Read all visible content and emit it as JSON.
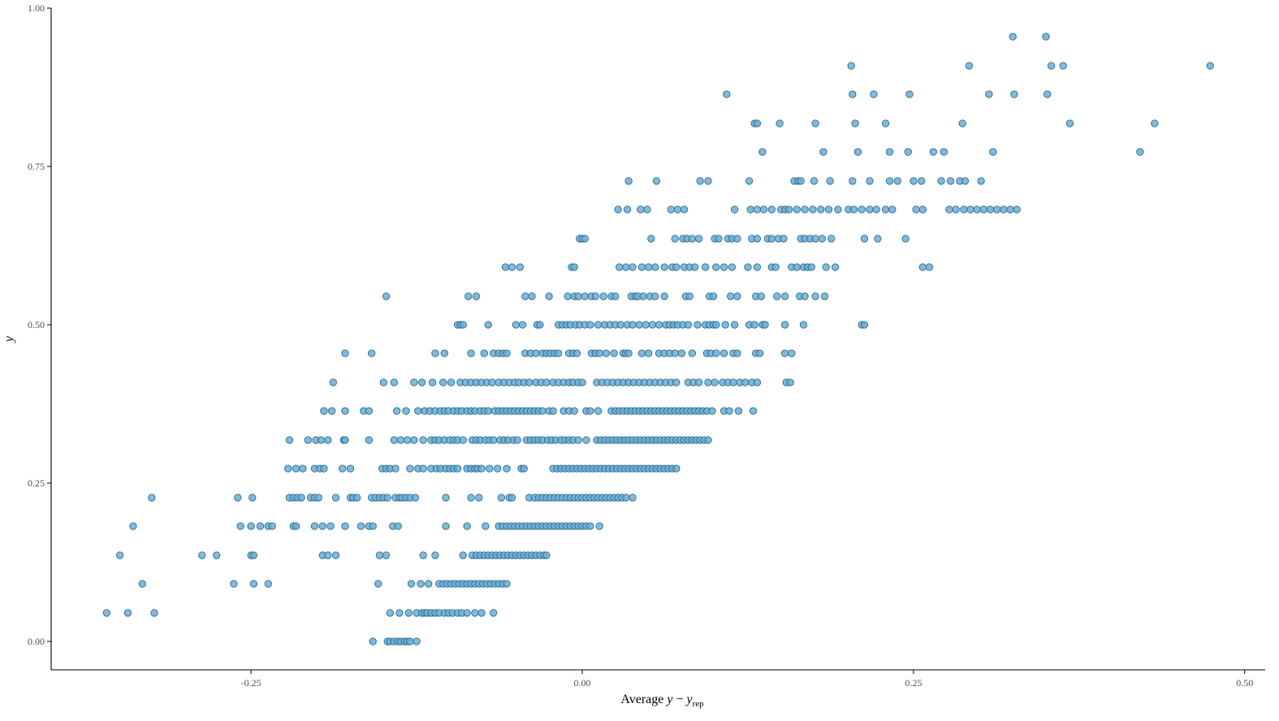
{
  "colors": {
    "point_fill": "#6baed6",
    "point_stroke": "#2c6a8e",
    "axis": "#000000",
    "tick_text": "#4d4d4d"
  },
  "chart_data": {
    "type": "scatter",
    "title": "",
    "xlabel": "Average y − y_rep",
    "xlabel_parts": {
      "prefix": "Average ",
      "var": "y",
      "op": " − ",
      "var2": "y",
      "subscript": "rep"
    },
    "ylabel": "y",
    "xlim": [
      -0.4,
      0.5
    ],
    "ylim": [
      -0.035,
      1.0
    ],
    "x_ticks": [
      -0.25,
      0,
      0.25,
      0.5
    ],
    "x_tick_labels": [
      "-0.25",
      "0.00",
      "0.25",
      "0.50"
    ],
    "y_ticks": [
      0,
      0.25,
      0.5,
      0.75,
      1.0
    ],
    "y_tick_labels": [
      "0.00",
      "0.25",
      "0.50",
      "0.75",
      "1.00"
    ],
    "grid": false,
    "legend": "none",
    "series": [
      {
        "rows": [
          {
            "y": 0.0,
            "x": [
              -0.158,
              -0.147,
              -0.145,
              -0.142,
              -0.139,
              -0.137,
              -0.134,
              -0.132,
              -0.13,
              -0.125
            ]
          },
          {
            "y": 0.045,
            "x": [
              -0.359,
              -0.343,
              -0.323,
              -0.145,
              -0.138,
              -0.131,
              -0.125,
              -0.121,
              -0.119,
              -0.117,
              -0.114,
              -0.111,
              -0.108,
              -0.104,
              -0.101,
              -0.098,
              -0.094,
              -0.091,
              -0.087,
              -0.081,
              -0.076,
              -0.067
            ]
          },
          {
            "y": 0.091,
            "x": [
              -0.332,
              -0.263,
              -0.248,
              -0.237,
              -0.154,
              -0.129,
              -0.122,
              -0.116,
              -0.108,
              -0.105,
              -0.102,
              -0.099,
              -0.096,
              -0.093,
              -0.09,
              -0.087,
              -0.084,
              -0.081,
              -0.078,
              -0.075,
              -0.072,
              -0.069,
              -0.066,
              -0.063,
              -0.06,
              -0.057
            ]
          },
          {
            "y": 0.136,
            "x": [
              -0.349,
              -0.287,
              -0.276,
              -0.25,
              -0.248,
              -0.196,
              -0.192,
              -0.186,
              -0.153,
              -0.148,
              -0.12,
              -0.111,
              -0.09,
              -0.083,
              -0.08,
              -0.077,
              -0.074,
              -0.071,
              -0.068,
              -0.065,
              -0.062,
              -0.059,
              -0.056,
              -0.053,
              -0.05,
              -0.047,
              -0.044,
              -0.041,
              -0.038,
              -0.035,
              -0.032,
              -0.029,
              -0.027
            ]
          },
          {
            "y": 0.182,
            "x": [
              -0.339,
              -0.258,
              -0.25,
              -0.243,
              -0.237,
              -0.234,
              -0.218,
              -0.216,
              -0.202,
              -0.196,
              -0.19,
              -0.179,
              -0.167,
              -0.161,
              -0.158,
              -0.143,
              -0.139,
              -0.103,
              -0.087,
              -0.073,
              -0.063,
              -0.06,
              -0.057,
              -0.054,
              -0.051,
              -0.048,
              -0.045,
              -0.042,
              -0.039,
              -0.036,
              -0.033,
              -0.03,
              -0.027,
              -0.024,
              -0.021,
              -0.018,
              -0.015,
              -0.012,
              -0.009,
              -0.006,
              -0.003,
              0.0,
              0.003,
              0.006,
              0.013
            ]
          },
          {
            "y": 0.227,
            "x": [
              -0.325,
              -0.26,
              -0.249,
              -0.221,
              -0.218,
              -0.215,
              -0.212,
              -0.205,
              -0.202,
              -0.199,
              -0.186,
              -0.175,
              -0.173,
              -0.17,
              -0.159,
              -0.156,
              -0.153,
              -0.15,
              -0.147,
              -0.141,
              -0.138,
              -0.136,
              -0.133,
              -0.13,
              -0.126,
              -0.103,
              -0.084,
              -0.078,
              -0.061,
              -0.055,
              -0.053,
              -0.04,
              -0.036,
              -0.033,
              -0.03,
              -0.027,
              -0.024,
              -0.021,
              -0.018,
              -0.015,
              -0.012,
              -0.009,
              -0.006,
              -0.003,
              0.0,
              0.003,
              0.006,
              0.009,
              0.012,
              0.015,
              0.018,
              0.021,
              0.024,
              0.027,
              0.03,
              0.033,
              0.038
            ]
          },
          {
            "y": 0.273,
            "x": [
              -0.222,
              -0.216,
              -0.211,
              -0.202,
              -0.198,
              -0.195,
              -0.181,
              -0.175,
              -0.151,
              -0.148,
              -0.145,
              -0.141,
              -0.13,
              -0.124,
              -0.12,
              -0.114,
              -0.11,
              -0.107,
              -0.103,
              -0.1,
              -0.097,
              -0.094,
              -0.087,
              -0.084,
              -0.081,
              -0.079,
              -0.076,
              -0.07,
              -0.064,
              -0.057,
              -0.046,
              -0.044,
              -0.022,
              -0.019,
              -0.016,
              -0.013,
              -0.01,
              -0.007,
              -0.004,
              -0.001,
              0.002,
              0.005,
              0.008,
              0.011,
              0.014,
              0.017,
              0.02,
              0.023,
              0.026,
              0.029,
              0.032,
              0.035,
              0.038,
              0.041,
              0.044,
              0.047,
              0.05,
              0.053,
              0.056,
              0.059,
              0.062,
              0.065,
              0.068,
              0.071
            ]
          },
          {
            "y": 0.318,
            "x": [
              -0.221,
              -0.207,
              -0.201,
              -0.197,
              -0.192,
              -0.18,
              -0.179,
              -0.161,
              -0.142,
              -0.137,
              -0.132,
              -0.127,
              -0.12,
              -0.114,
              -0.111,
              -0.108,
              -0.104,
              -0.1,
              -0.097,
              -0.094,
              -0.09,
              -0.083,
              -0.08,
              -0.077,
              -0.073,
              -0.07,
              -0.067,
              -0.062,
              -0.059,
              -0.056,
              -0.052,
              -0.049,
              -0.042,
              -0.039,
              -0.036,
              -0.033,
              -0.03,
              -0.026,
              -0.023,
              -0.02,
              -0.016,
              -0.013,
              -0.01,
              -0.007,
              -0.003,
              0.003,
              0.011,
              0.014,
              0.017,
              0.02,
              0.023,
              0.026,
              0.029,
              0.032,
              0.035,
              0.038,
              0.041,
              0.044,
              0.047,
              0.05,
              0.053,
              0.056,
              0.059,
              0.062,
              0.065,
              0.068,
              0.071,
              0.074,
              0.077,
              0.08,
              0.083,
              0.086,
              0.089,
              0.092,
              0.095
            ]
          },
          {
            "y": 0.364,
            "x": [
              -0.195,
              -0.189,
              -0.179,
              -0.165,
              -0.161,
              -0.14,
              -0.133,
              -0.124,
              -0.119,
              -0.115,
              -0.111,
              -0.107,
              -0.104,
              -0.101,
              -0.097,
              -0.094,
              -0.091,
              -0.087,
              -0.084,
              -0.081,
              -0.077,
              -0.074,
              -0.071,
              -0.066,
              -0.063,
              -0.06,
              -0.057,
              -0.054,
              -0.051,
              -0.048,
              -0.045,
              -0.042,
              -0.039,
              -0.036,
              -0.033,
              -0.03,
              -0.025,
              -0.022,
              -0.014,
              -0.01,
              -0.006,
              0.003,
              0.006,
              0.012,
              0.022,
              0.025,
              0.028,
              0.031,
              0.034,
              0.037,
              0.04,
              0.043,
              0.046,
              0.049,
              0.052,
              0.055,
              0.058,
              0.061,
              0.064,
              0.067,
              0.07,
              0.073,
              0.076,
              0.079,
              0.082,
              0.085,
              0.088,
              0.091,
              0.094,
              0.098,
              0.107,
              0.111,
              0.118,
              0.129
            ]
          },
          {
            "y": 0.409,
            "x": [
              -0.188,
              -0.15,
              -0.142,
              -0.127,
              -0.121,
              -0.113,
              -0.105,
              -0.099,
              -0.092,
              -0.088,
              -0.084,
              -0.08,
              -0.076,
              -0.072,
              -0.068,
              -0.063,
              -0.059,
              -0.055,
              -0.051,
              -0.048,
              -0.044,
              -0.04,
              -0.035,
              -0.031,
              -0.027,
              -0.022,
              -0.018,
              -0.014,
              -0.01,
              -0.007,
              -0.003,
              0.0,
              0.011,
              0.015,
              0.019,
              0.023,
              0.027,
              0.031,
              0.035,
              0.039,
              0.043,
              0.047,
              0.051,
              0.055,
              0.059,
              0.063,
              0.067,
              0.071,
              0.08,
              0.084,
              0.088,
              0.095,
              0.1,
              0.106,
              0.11,
              0.114,
              0.119,
              0.123,
              0.128,
              0.132,
              0.154,
              0.157
            ]
          },
          {
            "y": 0.455,
            "x": [
              -0.179,
              -0.159,
              -0.111,
              -0.104,
              -0.084,
              -0.074,
              -0.067,
              -0.063,
              -0.06,
              -0.057,
              -0.043,
              -0.039,
              -0.035,
              -0.03,
              -0.027,
              -0.024,
              -0.021,
              -0.018,
              -0.01,
              -0.007,
              -0.004,
              0.007,
              0.01,
              0.013,
              0.018,
              0.024,
              0.031,
              0.033,
              0.035,
              0.045,
              0.05,
              0.058,
              0.062,
              0.066,
              0.07,
              0.075,
              0.083,
              0.094,
              0.097,
              0.101,
              0.107,
              0.114,
              0.117,
              0.131,
              0.134,
              0.153,
              0.158
            ]
          },
          {
            "y": 0.5,
            "x": [
              -0.094,
              -0.092,
              -0.09,
              -0.071,
              -0.05,
              -0.045,
              -0.034,
              -0.032,
              -0.018,
              -0.015,
              -0.012,
              -0.009,
              -0.005,
              -0.002,
              0.002,
              0.006,
              0.012,
              0.017,
              0.021,
              0.025,
              0.029,
              0.034,
              0.038,
              0.043,
              0.048,
              0.053,
              0.058,
              0.063,
              0.066,
              0.069,
              0.072,
              0.076,
              0.08,
              0.087,
              0.093,
              0.096,
              0.099,
              0.101,
              0.108,
              0.115,
              0.126,
              0.13,
              0.136,
              0.138,
              0.153,
              0.167,
              0.211,
              0.213
            ]
          },
          {
            "y": 0.545,
            "x": [
              -0.148,
              -0.086,
              -0.08,
              -0.043,
              -0.038,
              -0.025,
              -0.011,
              -0.006,
              -0.003,
              0.002,
              0.007,
              0.01,
              0.016,
              0.022,
              0.025,
              0.037,
              0.04,
              0.042,
              0.046,
              0.051,
              0.055,
              0.062,
              0.078,
              0.081,
              0.096,
              0.099,
              0.112,
              0.117,
              0.131,
              0.135,
              0.147,
              0.153,
              0.164,
              0.168,
              0.176,
              0.183
            ]
          },
          {
            "y": 0.591,
            "x": [
              -0.058,
              -0.053,
              -0.047,
              -0.008,
              -0.006,
              0.028,
              0.033,
              0.038,
              0.045,
              0.05,
              0.055,
              0.062,
              0.068,
              0.071,
              0.077,
              0.081,
              0.085,
              0.093,
              0.101,
              0.107,
              0.113,
              0.125,
              0.132,
              0.143,
              0.146,
              0.158,
              0.162,
              0.167,
              0.17,
              0.173,
              0.184,
              0.191,
              0.257,
              0.262
            ]
          },
          {
            "y": 0.636,
            "x": [
              -0.002,
              0.0,
              0.002,
              0.052,
              0.07,
              0.076,
              0.079,
              0.083,
              0.088,
              0.1,
              0.103,
              0.11,
              0.113,
              0.117,
              0.128,
              0.132,
              0.14,
              0.143,
              0.148,
              0.152,
              0.165,
              0.168,
              0.172,
              0.176,
              0.181,
              0.188,
              0.213,
              0.223,
              0.244
            ]
          },
          {
            "y": 0.682,
            "x": [
              0.027,
              0.034,
              0.044,
              0.049,
              0.067,
              0.072,
              0.077,
              0.115,
              0.127,
              0.132,
              0.137,
              0.143,
              0.15,
              0.153,
              0.156,
              0.162,
              0.168,
              0.174,
              0.18,
              0.186,
              0.193,
              0.201,
              0.205,
              0.211,
              0.217,
              0.222,
              0.229,
              0.234,
              0.252,
              0.257,
              0.277,
              0.282,
              0.288,
              0.293,
              0.298,
              0.303,
              0.308,
              0.313,
              0.318,
              0.323,
              0.328
            ]
          },
          {
            "y": 0.727,
            "x": [
              0.035,
              0.056,
              0.089,
              0.095,
              0.126,
              0.16,
              0.163,
              0.165,
              0.175,
              0.187,
              0.204,
              0.217,
              0.232,
              0.238,
              0.25,
              0.256,
              0.271,
              0.278,
              0.285,
              0.289,
              0.301
            ]
          },
          {
            "y": 0.773,
            "x": [
              0.136,
              0.182,
              0.208,
              0.232,
              0.246,
              0.265,
              0.273,
              0.31,
              0.421
            ]
          },
          {
            "y": 0.818,
            "x": [
              0.13,
              0.132,
              0.149,
              0.176,
              0.206,
              0.229,
              0.287,
              0.368,
              0.432
            ]
          },
          {
            "y": 0.864,
            "x": [
              0.109,
              0.204,
              0.22,
              0.247,
              0.307,
              0.326,
              0.351
            ]
          },
          {
            "y": 0.909,
            "x": [
              0.203,
              0.292,
              0.354,
              0.363,
              0.474
            ]
          },
          {
            "y": 0.955,
            "x": [
              0.325,
              0.35
            ]
          }
        ]
      }
    ]
  }
}
